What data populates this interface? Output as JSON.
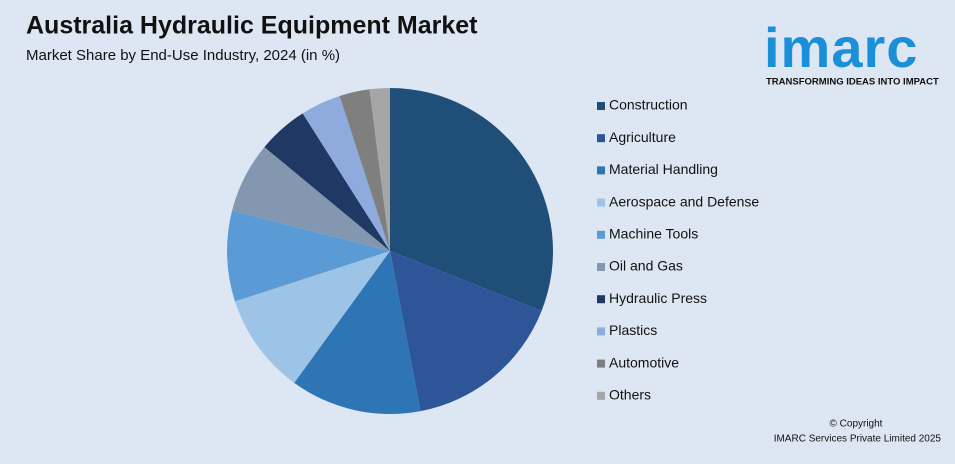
{
  "chart_data": {
    "type": "pie",
    "title": "Australia Hydraulic Equipment Market",
    "subtitle": "Market Share by End-Use Industry, 2024 (in %)",
    "categories": [
      "Construction",
      "Agriculture",
      "Material Handling",
      "Aerospace and Defense",
      "Machine Tools",
      "Oil and Gas",
      "Hydraulic Press",
      "Plastics",
      "Automotive",
      "Others"
    ],
    "values": [
      31,
      16,
      13,
      10,
      9,
      7,
      5,
      4,
      3,
      2
    ],
    "colors": [
      "#1f4e79",
      "#2e5597",
      "#2e75b6",
      "#9dc3e6",
      "#5b9bd5",
      "#8497b0",
      "#203864",
      "#8faadc",
      "#7f7f7f",
      "#a6a6a6"
    ],
    "legend": "right"
  },
  "logo": {
    "name": "imarc",
    "tagline": "TRANSFORMING IDEAS INTO IMPACT"
  },
  "footer": {
    "copyright": "© Copyright",
    "company": "IMARC Services Private Limited 2025"
  }
}
